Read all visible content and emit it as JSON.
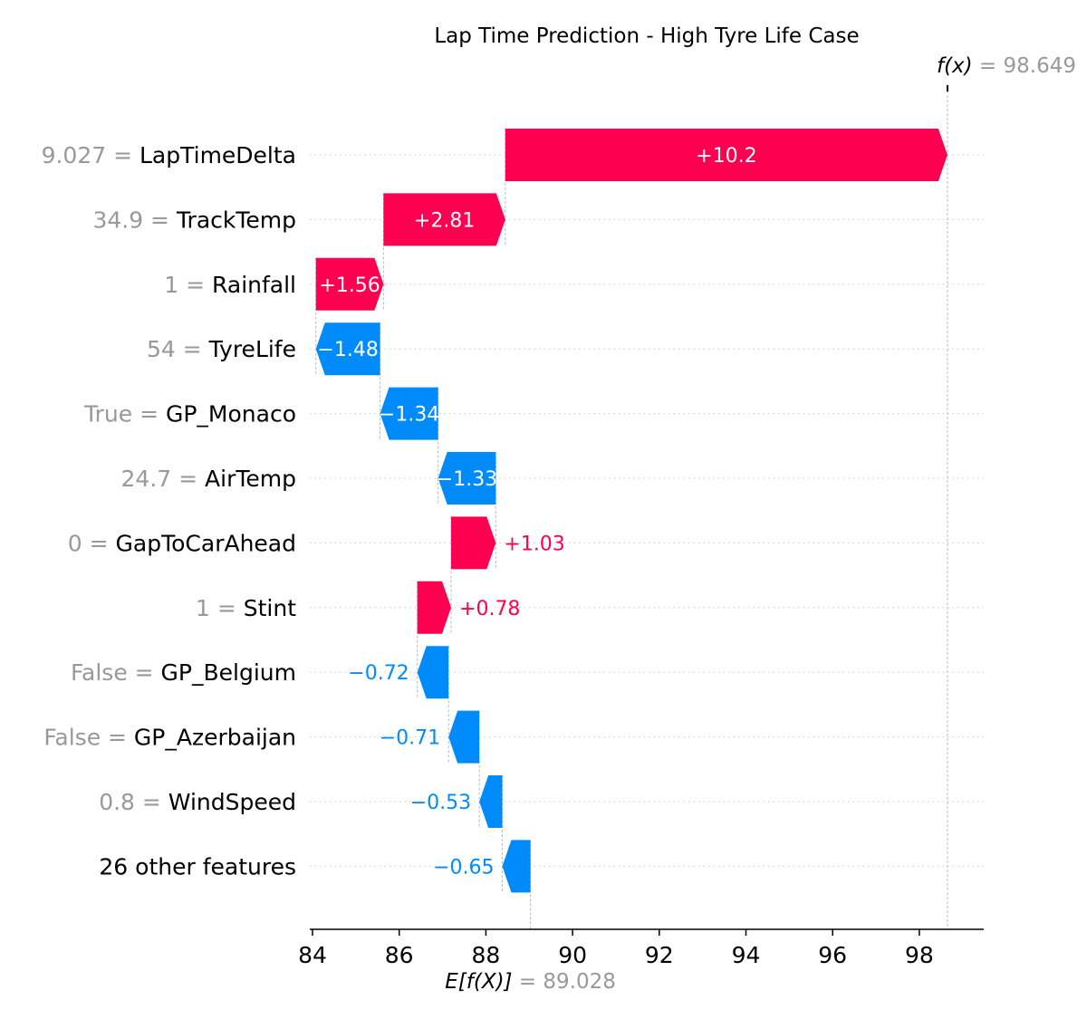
{
  "chart_data": {
    "type": "waterfall",
    "title": "Lap Time Prediction - High Tyre Life Case",
    "base_value": 89.028,
    "base_value_text": "89.028",
    "output_value": 98.649,
    "output_value_text": "98.649",
    "base_label_prefix": "E[f(X)]",
    "output_label_prefix": "f(x)",
    "xlim": [
      84,
      99.4
    ],
    "xticks": [
      84,
      86,
      88,
      90,
      92,
      94,
      96,
      98
    ],
    "features": [
      {
        "value": "9.027",
        "name": "LapTimeDelta",
        "contribution": 10.2,
        "label": "+10.2"
      },
      {
        "value": "34.9",
        "name": "TrackTemp",
        "contribution": 2.81,
        "label": "+2.81"
      },
      {
        "value": "1",
        "name": "Rainfall",
        "contribution": 1.56,
        "label": "+1.56"
      },
      {
        "value": "54",
        "name": "TyreLife",
        "contribution": -1.48,
        "label": "−1.48"
      },
      {
        "value": "True",
        "name": "GP_Monaco",
        "contribution": -1.34,
        "label": "−1.34"
      },
      {
        "value": "24.7",
        "name": "AirTemp",
        "contribution": -1.33,
        "label": "−1.33"
      },
      {
        "value": "0",
        "name": "GapToCarAhead",
        "contribution": 1.03,
        "label": "+1.03"
      },
      {
        "value": "1",
        "name": "Stint",
        "contribution": 0.78,
        "label": "+0.78"
      },
      {
        "value": "False",
        "name": "GP_Belgium",
        "contribution": -0.72,
        "label": "−0.72"
      },
      {
        "value": "False",
        "name": "GP_Azerbaijan",
        "contribution": -0.71,
        "label": "−0.71"
      },
      {
        "value": "0.8",
        "name": "WindSpeed",
        "contribution": -0.53,
        "label": "−0.53"
      },
      {
        "value": "",
        "name": "26 other features",
        "contribution": -0.65,
        "label": "−0.65"
      }
    ],
    "colors": {
      "positive": "#ff0051",
      "negative": "#008bfb",
      "grid": "#cccccc",
      "muted": "#999999"
    }
  }
}
